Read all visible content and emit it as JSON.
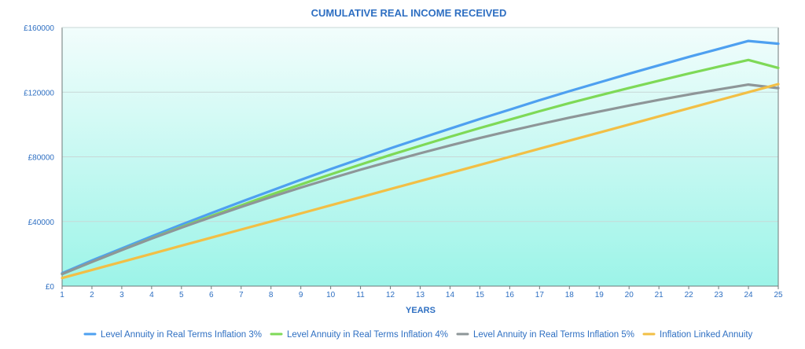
{
  "chart_data": {
    "type": "line",
    "title": "CUMULATIVE REAL INCOME RECEIVED",
    "xlabel": "YEARS",
    "ylabel": "",
    "x": [
      1,
      2,
      3,
      4,
      5,
      6,
      7,
      8,
      9,
      10,
      11,
      12,
      13,
      14,
      15,
      16,
      17,
      18,
      19,
      20,
      21,
      22,
      23,
      24,
      25
    ],
    "x_tick_labels": [
      "1",
      "2",
      "3",
      "4",
      "5",
      "6",
      "7",
      "8",
      "9",
      "10",
      "11",
      "12",
      "13",
      "14",
      "15",
      "16",
      "17",
      "18",
      "19",
      "20",
      "21",
      "22",
      "23",
      "24",
      "25"
    ],
    "xlim": [
      1,
      25
    ],
    "ylim": [
      0,
      160000
    ],
    "y_ticks": [
      0,
      40000,
      80000,
      120000,
      160000
    ],
    "y_tick_labels": [
      "£0",
      "£40000",
      "£80000",
      "£120000",
      "£160000"
    ],
    "grid": true,
    "legend_position": "bottom",
    "background_gradient": [
      "#f2fdfc",
      "#9cf4e8"
    ],
    "series": [
      {
        "name": "Level Annuity in Real Terms Inflation 3%",
        "color": "#4ea0f0",
        "values": [
          8000,
          15900,
          23300,
          30800,
          38100,
          45200,
          52200,
          59000,
          65800,
          72400,
          78800,
          85200,
          91400,
          97400,
          103400,
          109200,
          115000,
          120600,
          126000,
          131400,
          136600,
          141800,
          146700,
          151700,
          150000
        ]
      },
      {
        "name": "Level Annuity in Real Terms Inflation 4%",
        "color": "#7ed957",
        "values": [
          7500,
          15000,
          22400,
          29600,
          36600,
          43400,
          50000,
          56600,
          62900,
          69100,
          75200,
          81100,
          86800,
          92400,
          97800,
          103000,
          108200,
          113200,
          118000,
          122600,
          127100,
          131500,
          135800,
          139900,
          135000
        ]
      },
      {
        "name": "Level Annuity in Real Terms Inflation 5%",
        "color": "#8e9698",
        "values": [
          7500,
          15000,
          22300,
          29400,
          36200,
          42700,
          49000,
          55100,
          61000,
          66600,
          72000,
          77200,
          82200,
          87000,
          91600,
          96000,
          100200,
          104200,
          108000,
          111700,
          115200,
          118500,
          121700,
          124700,
          122500
        ]
      },
      {
        "name": "Inflation Linked Annuity",
        "color": "#f2bf45",
        "values": [
          5000,
          10000,
          15000,
          20000,
          25000,
          30000,
          35000,
          40000,
          45000,
          50000,
          55000,
          60000,
          65000,
          70000,
          75000,
          80000,
          85000,
          90000,
          95000,
          100000,
          105000,
          110000,
          115000,
          120000,
          125000
        ]
      }
    ]
  },
  "colors": {
    "title": "#2e6fc2",
    "tick_text": "#2e6fc2",
    "gridline": "#c8d8d6",
    "axis": "#6e7a7a"
  }
}
